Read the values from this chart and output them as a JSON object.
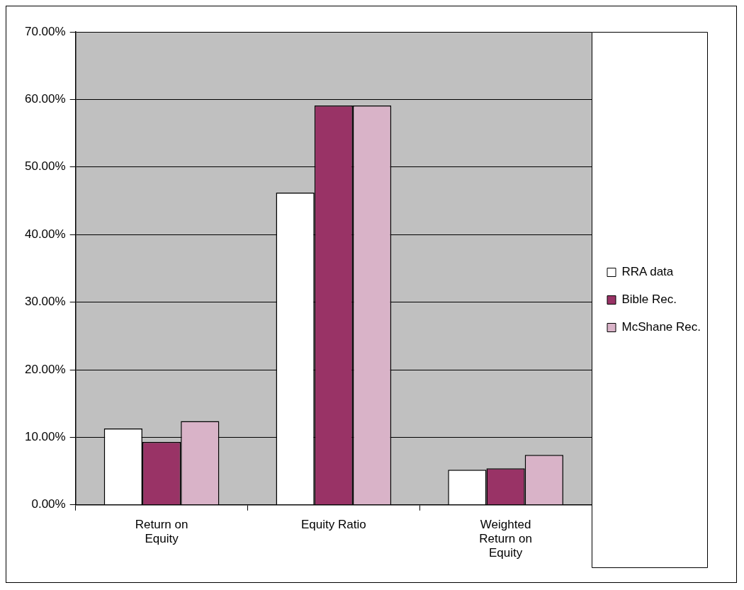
{
  "chart_data": {
    "type": "bar",
    "categories": [
      "Return on Equity",
      "Equity Ratio",
      "Weighted Return on Equity"
    ],
    "series": [
      {
        "name": "RRA data",
        "color": "#ffffff",
        "values": [
          11.3,
          46.2,
          5.2
        ]
      },
      {
        "name": "Bible Rec.",
        "color": "#993366",
        "values": [
          9.3,
          59.1,
          5.4
        ]
      },
      {
        "name": "McShane Rec.",
        "color": "#d9b3c8",
        "values": [
          12.4,
          59.1,
          7.4
        ]
      }
    ],
    "ylim": [
      0,
      70
    ],
    "yticks": [
      {
        "value": 0,
        "label": "0.00%"
      },
      {
        "value": 10,
        "label": "10.00%"
      },
      {
        "value": 20,
        "label": "20.00%"
      },
      {
        "value": 30,
        "label": "30.00%"
      },
      {
        "value": 40,
        "label": "40.00%"
      },
      {
        "value": 50,
        "label": "50.00%"
      },
      {
        "value": 60,
        "label": "60.00%"
      },
      {
        "value": 70,
        "label": "70.00%"
      }
    ],
    "grid": "y",
    "legend": "right"
  }
}
